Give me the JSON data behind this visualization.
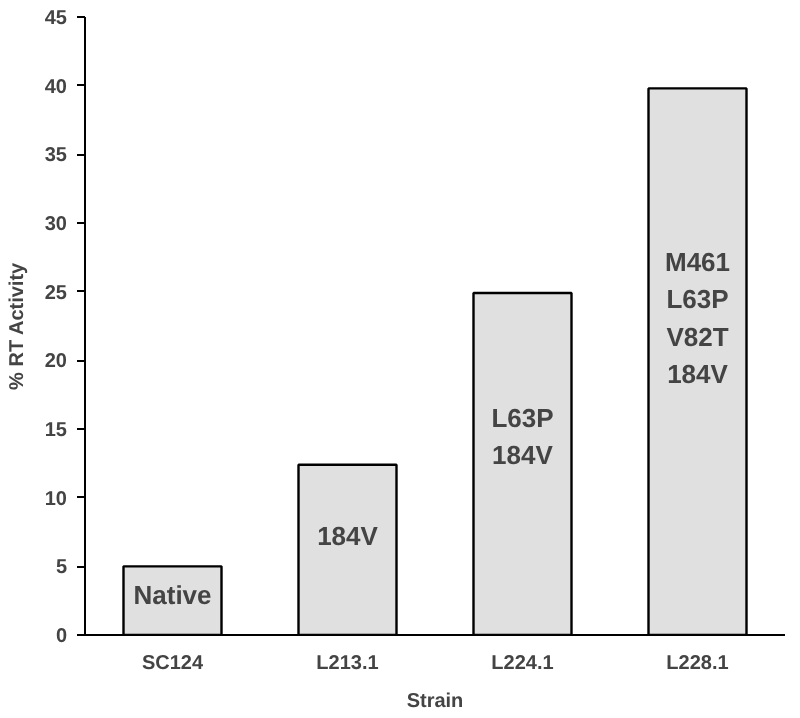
{
  "chart_data": {
    "type": "bar",
    "xlabel": "Strain",
    "ylabel": "% RT Activity",
    "categories": [
      "SC124",
      "L213.1",
      "L224.1",
      "L228.1"
    ],
    "values": [
      5,
      12.4,
      24.9,
      39.8
    ],
    "color": "#e0e0e0",
    "ylim": [
      0,
      45
    ],
    "yticks": [
      0,
      5,
      10,
      15,
      20,
      25,
      30,
      35,
      40,
      45
    ],
    "grid": false,
    "annotations": [
      "Native",
      "184V",
      "L63P\n184V",
      "M461\nL63P\nV82T\n184V"
    ]
  }
}
